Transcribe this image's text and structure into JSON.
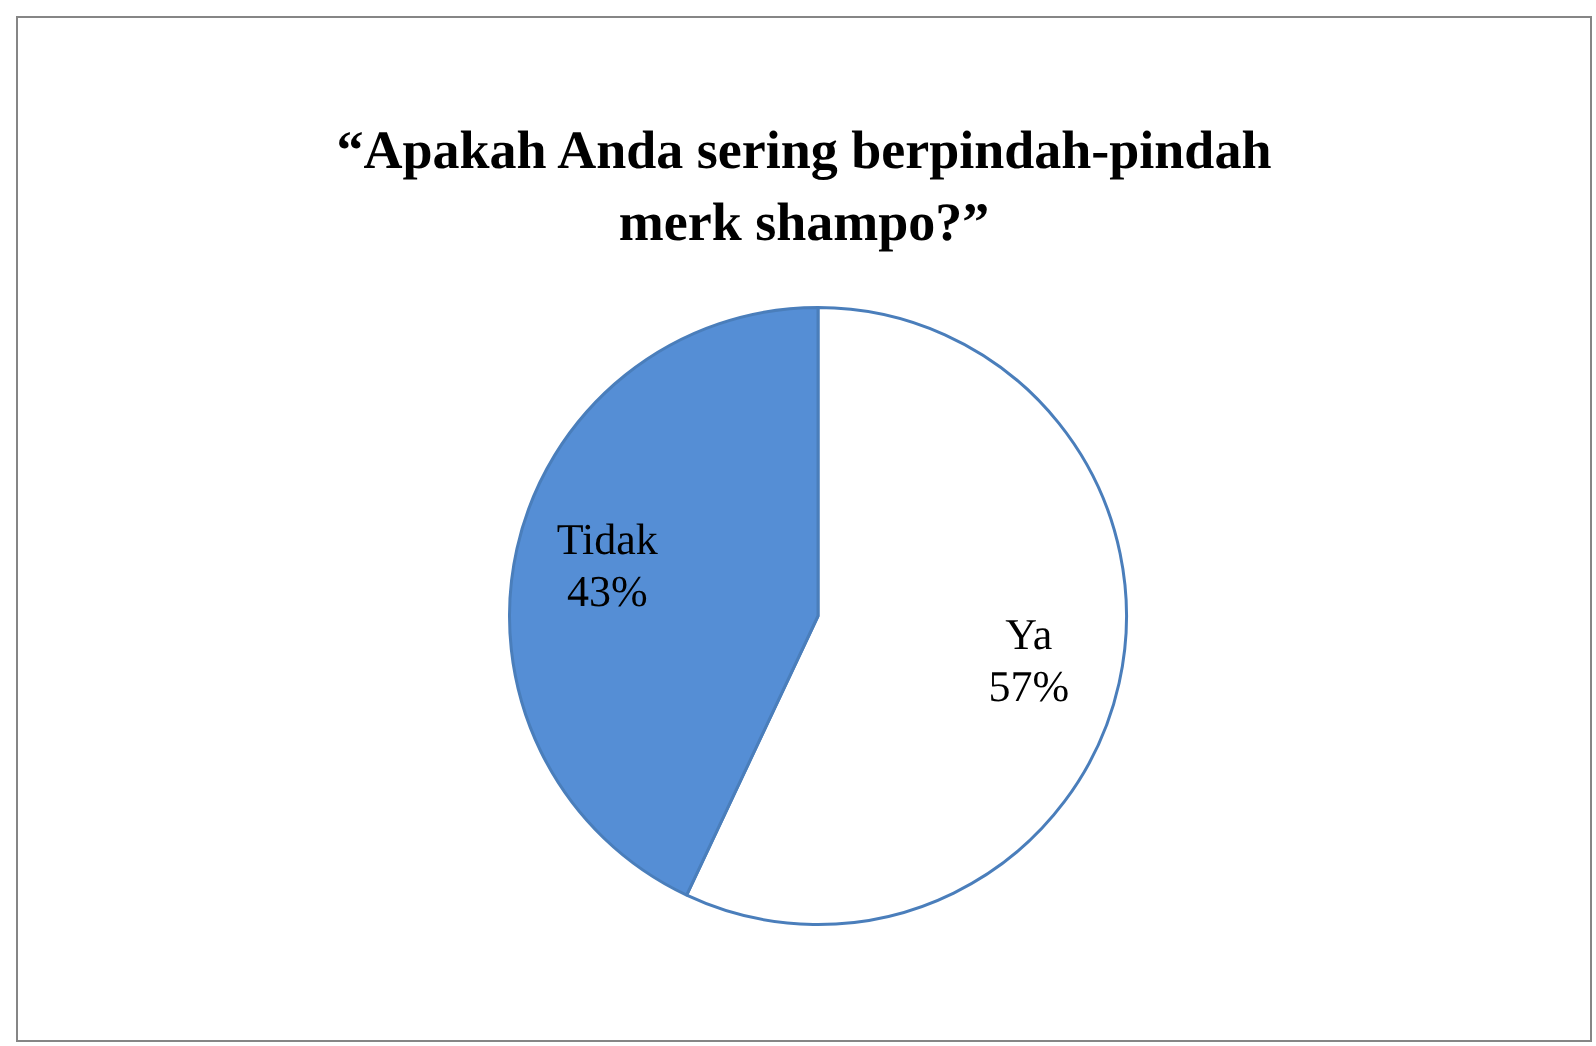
{
  "chart_data": {
    "type": "pie",
    "title": "“Apakah Anda sering berpindah-pindah merk shampo?”",
    "categories": [
      "Ya",
      "Tidak"
    ],
    "values": [
      57,
      43
    ],
    "colors": [
      "#ffffff",
      "#558ed5"
    ],
    "value_labels": [
      "57%",
      "43%"
    ],
    "legend": false
  }
}
